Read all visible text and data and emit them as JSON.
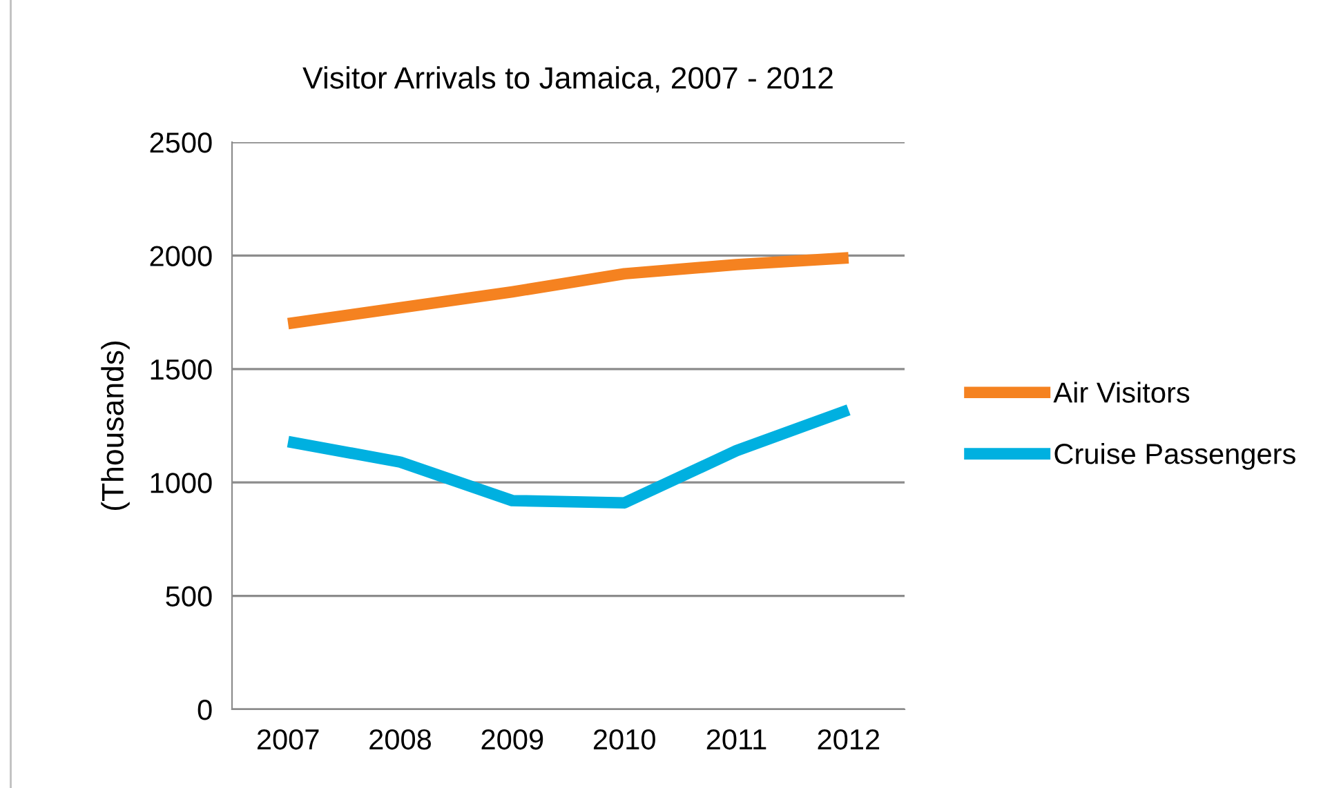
{
  "chart_data": {
    "type": "line",
    "title": "Visitor Arrivals to Jamaica, 2007 - 2012",
    "ylabel": "(Thousands)",
    "categories": [
      "2007",
      "2008",
      "2009",
      "2010",
      "2011",
      "2012"
    ],
    "series": [
      {
        "name": "Air Visitors",
        "color": "#f58220",
        "values": [
          1700,
          1770,
          1840,
          1920,
          1960,
          1990
        ]
      },
      {
        "name": "Cruise Passengers",
        "color": "#00b0e0",
        "values": [
          1180,
          1090,
          920,
          910,
          1140,
          1320
        ]
      }
    ],
    "ylim": [
      0,
      2500
    ],
    "yticks": [
      0,
      500,
      1000,
      1500,
      2000,
      2500
    ],
    "grid": "y",
    "legend": "right",
    "marker": "none",
    "line_style": "solid"
  }
}
